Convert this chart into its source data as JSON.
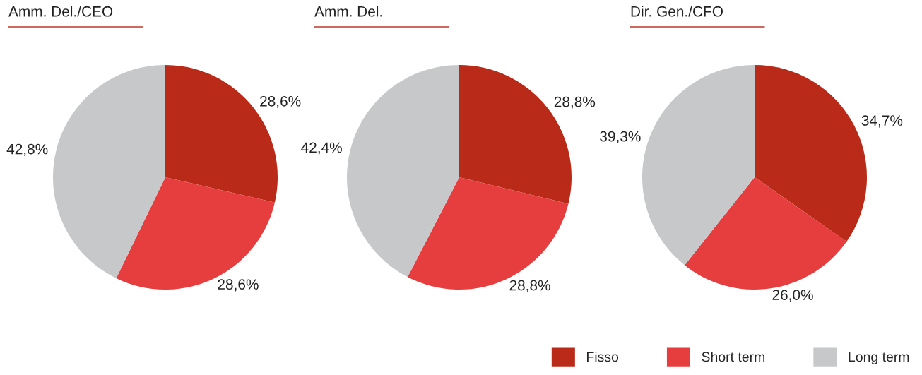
{
  "chart_data": [
    {
      "type": "pie",
      "title": "Amm. Del./CEO",
      "categories": [
        "Fisso",
        "Short term",
        "Long term"
      ],
      "values": [
        28.6,
        28.6,
        42.8
      ],
      "colors": [
        "#b92b18",
        "#e63e3e",
        "#c7c8ca"
      ],
      "value_labels": [
        "28,6%",
        "28,6%",
        "42,8%"
      ],
      "legend": "bottom right"
    },
    {
      "type": "pie",
      "title": "Amm. Del.",
      "values": [
        28.8,
        28.8,
        42.4
      ],
      "colors": [
        "#b92b18",
        "#e63e3e",
        "#c7c8ca"
      ],
      "value_labels": [
        "28,8%",
        "28,8%",
        "42,4%"
      ]
    },
    {
      "type": "pie",
      "title": "Dir. Gen./CFO",
      "values": [
        34.7,
        26.0,
        39.3
      ],
      "colors": [
        "#b92b18",
        "#e63e3e",
        "#c7c8ca"
      ],
      "value_labels": [
        "34,7%",
        "26,0%",
        "39,3%"
      ]
    }
  ]
}
